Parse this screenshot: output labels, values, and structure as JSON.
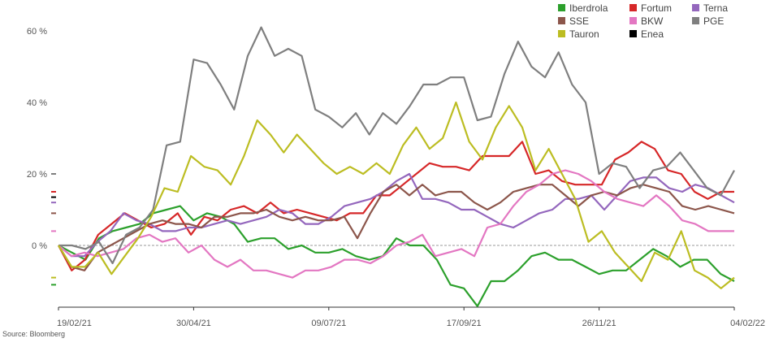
{
  "chart_data": {
    "type": "line",
    "x_labels": [
      "19/02/21",
      "30/04/21",
      "09/07/21",
      "17/09/21",
      "26/11/21",
      "04/02/22"
    ],
    "y_ticks": [
      "60 %",
      "40 %",
      "20 %",
      "0 %"
    ],
    "ylim": [
      -17,
      62
    ],
    "grid": false,
    "legend_position": "top-right",
    "source": "Source: Bloomberg",
    "series": [
      {
        "name": "Iberdrola",
        "color": "#2ca02c",
        "values": [
          0,
          -2,
          -4,
          2,
          4,
          5,
          6,
          9,
          10,
          11,
          7,
          9,
          8,
          6,
          1,
          2,
          2,
          -1,
          0,
          -2,
          -2,
          -1,
          -3,
          -4,
          -3,
          2,
          0,
          0,
          -4,
          -11,
          -12,
          -17,
          -10,
          -10,
          -7,
          -3,
          -2,
          -4,
          -4,
          -6,
          -8,
          -7,
          -7,
          -4,
          -1,
          -3,
          -6,
          -4,
          -4,
          -8,
          -10
        ]
      },
      {
        "name": "Fortum",
        "color": "#d62728",
        "values": [
          0,
          -7,
          -4,
          3,
          6,
          9,
          7,
          5,
          6,
          9,
          3,
          8,
          7,
          10,
          11,
          9,
          12,
          9,
          10,
          9,
          8,
          7,
          9,
          9,
          14,
          14,
          17,
          20,
          23,
          22,
          22,
          21,
          25,
          25,
          25,
          29,
          20,
          21,
          18,
          17,
          17,
          17,
          24,
          26,
          29,
          27,
          21,
          20,
          15,
          13,
          15,
          15
        ]
      },
      {
        "name": "Terna",
        "color": "#9467bd",
        "values": [
          0,
          -3,
          -3,
          1,
          4,
          9,
          7,
          6,
          4,
          4,
          5,
          5,
          6,
          7,
          6,
          7,
          8,
          10,
          9,
          6,
          6,
          8,
          11,
          12,
          13,
          15,
          18,
          20,
          13,
          13,
          12,
          10,
          10,
          8,
          6,
          5,
          7,
          9,
          10,
          13,
          13,
          14,
          10,
          14,
          18,
          19,
          19,
          16,
          15,
          17,
          16,
          14,
          12
        ]
      },
      {
        "name": "SSE",
        "color": "#8c564b",
        "values": [
          0,
          -6,
          -7,
          -2,
          0,
          2,
          4,
          6,
          7,
          6,
          6,
          5,
          8,
          8,
          9,
          9,
          10,
          8,
          7,
          8,
          7,
          7,
          8,
          2,
          9,
          15,
          17,
          14,
          17,
          14,
          15,
          15,
          12,
          10,
          12,
          15,
          16,
          17,
          17,
          14,
          11,
          14,
          15,
          14,
          16,
          17,
          16,
          15,
          11,
          10,
          11,
          10,
          9
        ]
      },
      {
        "name": "BKW",
        "color": "#e377c2",
        "values": [
          0,
          -3,
          -2,
          -3,
          -2,
          -1,
          2,
          3,
          1,
          2,
          -2,
          0,
          -4,
          -6,
          -4,
          -7,
          -7,
          -8,
          -9,
          -7,
          -7,
          -6,
          -4,
          -4,
          -5,
          -3,
          0,
          1,
          3,
          -3,
          -2,
          -1,
          -3,
          5,
          6,
          11,
          15,
          17,
          20,
          21,
          20,
          18,
          15,
          13,
          12,
          11,
          14,
          11,
          7,
          6,
          4,
          4,
          4
        ]
      },
      {
        "name": "PGE",
        "color": "#7f7f7f",
        "values": [
          0,
          0,
          -1,
          1,
          -5,
          3,
          5,
          10,
          28,
          29,
          52,
          51,
          45,
          38,
          53,
          61,
          53,
          55,
          53,
          38,
          36,
          33,
          37,
          31,
          37,
          34,
          39,
          45,
          45,
          47,
          47,
          35,
          36,
          48,
          57,
          50,
          47,
          54,
          45,
          40,
          20,
          23,
          22,
          16,
          21,
          22,
          26,
          21,
          16,
          14,
          21
        ]
      },
      {
        "name": "Tauron",
        "color": "#bcbd22",
        "values": [
          0,
          -6,
          -6,
          -2,
          -8,
          -3,
          2,
          8,
          16,
          15,
          25,
          22,
          21,
          17,
          25,
          35,
          31,
          26,
          31,
          27,
          23,
          20,
          22,
          20,
          23,
          20,
          28,
          33,
          27,
          30,
          40,
          29,
          24,
          33,
          39,
          33,
          21,
          27,
          20,
          13,
          1,
          4,
          -2,
          -6,
          -10,
          -2,
          -4,
          4,
          -7,
          -9,
          -12,
          -9
        ]
      },
      {
        "name": "Enea",
        "color": "#000000",
        "values": []
      }
    ]
  },
  "legend_icons": [
    "legend-swatch"
  ]
}
